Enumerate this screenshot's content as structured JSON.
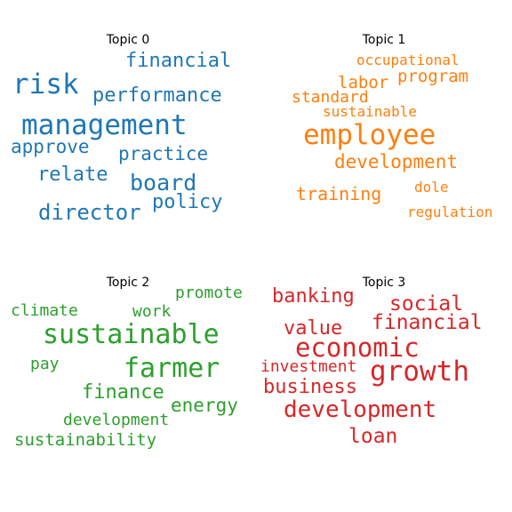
{
  "colors": {
    "topic_0": "#1f77b4",
    "topic_1": "#ff7f0e",
    "topic_2": "#2ca02c",
    "topic_3": "#d62728"
  },
  "topics": [
    {
      "title": "Topic 0",
      "words": [
        "risk",
        "management",
        "financial",
        "performance",
        "approve",
        "practice",
        "relate",
        "board",
        "director",
        "policy"
      ]
    },
    {
      "title": "Topic 1",
      "words": [
        "occupational",
        "labor",
        "program",
        "standard",
        "sustainable",
        "employee",
        "development",
        "training",
        "dole",
        "regulation"
      ]
    },
    {
      "title": "Topic 2",
      "words": [
        "promote",
        "climate",
        "work",
        "sustainable",
        "pay",
        "farmer",
        "finance",
        "energy",
        "development",
        "sustainability"
      ]
    },
    {
      "title": "Topic 3",
      "words": [
        "banking",
        "social",
        "financial",
        "value",
        "economic",
        "investment",
        "growth",
        "business",
        "development",
        "loan"
      ]
    }
  ]
}
